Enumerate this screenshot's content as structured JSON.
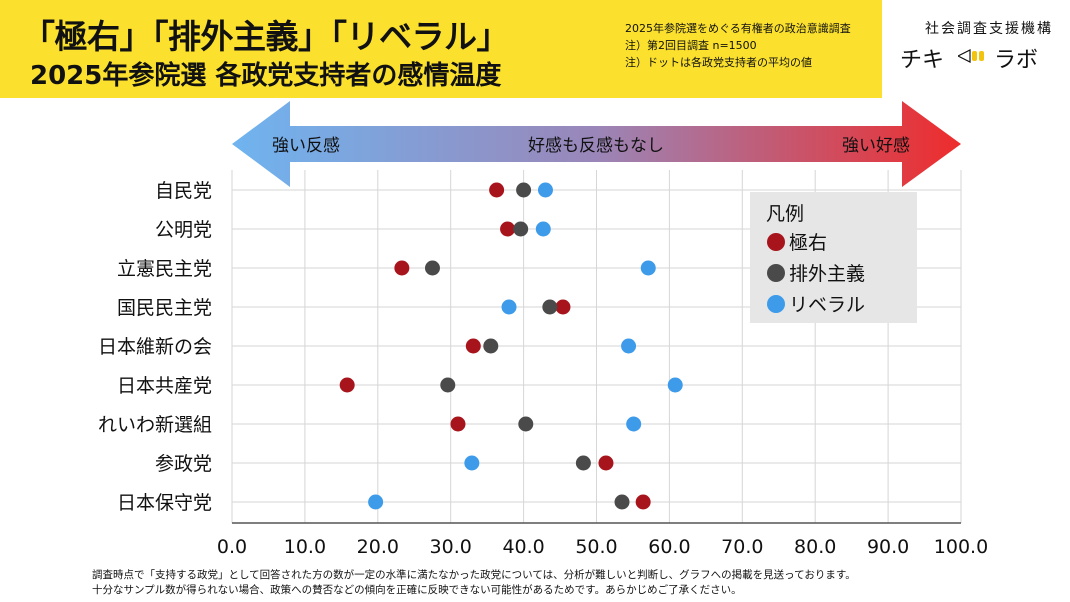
{
  "header": {
    "title_line1": "「極右」「排外主義」「リベラル」",
    "title_line2": "2025年参院選 各政党支持者の感情温度",
    "notes": [
      "2025年参院選をめぐる有権者の政治意識調査",
      "注）第2回目調査 n=1500",
      "注）ドットは各政党支持者の平均の値"
    ],
    "org": "社会調査支援機構",
    "brand_left": "チキ",
    "brand_right": "ラボ"
  },
  "arrow": {
    "left_label": "強い反感",
    "center_label": "好感も反感もなし",
    "right_label": "強い好感",
    "colors": {
      "left": "#6fb4f0",
      "mid": "#9a86b8",
      "right": "#ee2c2c"
    }
  },
  "footer": {
    "line1": "調査時点で「支持する政党」として回答された方の数が一定の水準に満たなかった政党については、分析が難しいと判断し、グラフへの掲載を見送っております。",
    "line2": "十分なサンプル数が得られない場合、政策への賛否などの傾向を正確に反映できない可能性があるためです。あらかじめご了承ください。"
  },
  "chart_data": {
    "type": "scatter",
    "categories": [
      "自民党",
      "公明党",
      "立憲民主党",
      "国民民主党",
      "日本維新の会",
      "日本共産党",
      "れいわ新選組",
      "参政党",
      "日本保守党"
    ],
    "xlim": [
      0,
      100
    ],
    "xticks": [
      "0.0",
      "10.0",
      "20.0",
      "30.0",
      "40.0",
      "50.0",
      "60.0",
      "70.0",
      "80.0",
      "90.0",
      "100.0"
    ],
    "grid": true,
    "legend_title": "凡例",
    "legend_position": "right",
    "series": [
      {
        "name": "極右",
        "color": "#a8141c",
        "values": [
          36.3,
          37.8,
          23.3,
          45.4,
          33.1,
          15.8,
          31.0,
          51.3,
          56.4
        ]
      },
      {
        "name": "排外主義",
        "color": "#4a4a4a",
        "values": [
          40.0,
          39.6,
          27.5,
          43.6,
          35.5,
          29.6,
          40.3,
          48.2,
          53.5
        ]
      },
      {
        "name": "リベラル",
        "color": "#3d9bea",
        "values": [
          43.0,
          42.7,
          57.1,
          38.0,
          54.4,
          60.8,
          55.1,
          32.9,
          19.7
        ]
      }
    ]
  }
}
